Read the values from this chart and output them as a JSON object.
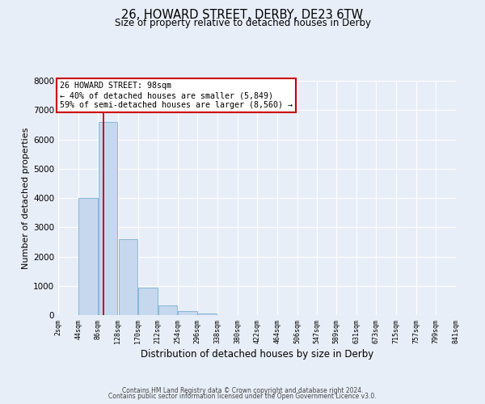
{
  "title": "26, HOWARD STREET, DERBY, DE23 6TW",
  "subtitle": "Size of property relative to detached houses in Derby",
  "xlabel": "Distribution of detached houses by size in Derby",
  "ylabel": "Number of detached properties",
  "bar_color": "#c5d8ee",
  "bar_edge_color": "#7aafd4",
  "background_color": "#e8eef8",
  "grid_color": "#ffffff",
  "bin_labels": [
    "2sqm",
    "44sqm",
    "86sqm",
    "128sqm",
    "170sqm",
    "212sqm",
    "254sqm",
    "296sqm",
    "338sqm",
    "380sqm",
    "422sqm",
    "464sqm",
    "506sqm",
    "547sqm",
    "589sqm",
    "631sqm",
    "673sqm",
    "715sqm",
    "757sqm",
    "799sqm",
    "841sqm"
  ],
  "bar_values": [
    0,
    4000,
    6600,
    2600,
    950,
    330,
    130,
    60,
    0,
    0,
    0,
    0,
    0,
    0,
    0,
    0,
    0,
    0,
    0,
    0
  ],
  "ylim": [
    0,
    8000
  ],
  "yticks": [
    0,
    1000,
    2000,
    3000,
    4000,
    5000,
    6000,
    7000,
    8000
  ],
  "property_size": 98,
  "property_label": "26 HOWARD STREET: 98sqm",
  "annotation_line1": "← 40% of detached houses are smaller (5,849)",
  "annotation_line2": "59% of semi-detached houses are larger (8,560) →",
  "vline_color": "#cc0000",
  "annotation_box_edge_color": "#cc0000",
  "footer_line1": "Contains HM Land Registry data © Crown copyright and database right 2024.",
  "footer_line2": "Contains public sector information licensed under the Open Government Licence v3.0.",
  "bin_edges": [
    2,
    44,
    86,
    128,
    170,
    212,
    254,
    296,
    338,
    380,
    422,
    464,
    506,
    547,
    589,
    631,
    673,
    715,
    757,
    799,
    841
  ],
  "num_bins": 20
}
